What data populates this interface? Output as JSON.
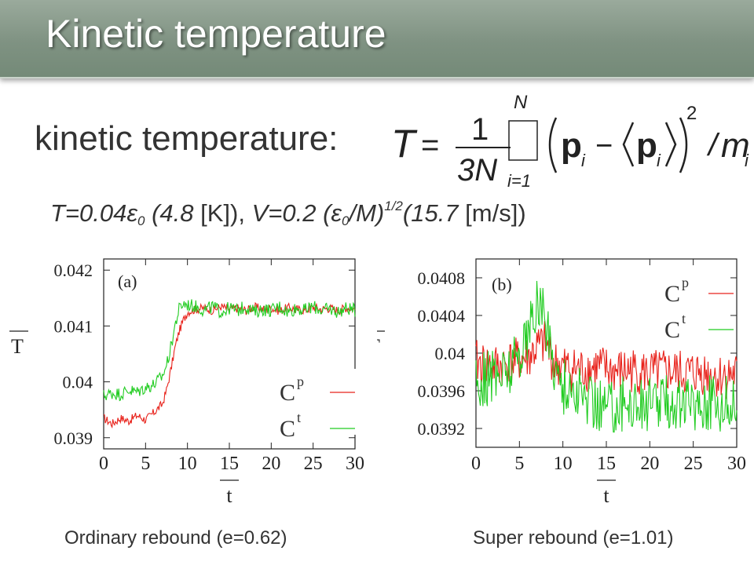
{
  "slide": {
    "title": "Kinetic temperature",
    "kinetic_label": "kinetic temperature:",
    "formula": {
      "lhs": "T",
      "equals": "=",
      "numerator": "1",
      "denominator": "3N",
      "sum_upper": "N",
      "sum_lower": "i=1",
      "p": "p",
      "index": "i",
      "minus": "−",
      "power": "2",
      "divide": "/",
      "mass": "m"
    },
    "params": {
      "t_prefix": "T=0.04ε",
      "t_sub": "0",
      "t_kelvin_value": " (4.8",
      "t_kelvin_unit": " [K]), ",
      "v_prefix": "V=0.2 (ε",
      "v_sub": "0",
      "v_mid": "/M)",
      "v_sup": "1/2",
      "v_speed_value": "(15.7",
      "v_speed_unit": " [m/s])"
    },
    "caption_left": "Ordinary rebound (e=0.62)",
    "caption_right": "Super rebound (e=1.01)"
  },
  "chart_data": [
    {
      "type": "line",
      "panel_label": "(a)",
      "xlabel": "t",
      "ylabel": "T",
      "xlim": [
        0,
        30
      ],
      "ylim": [
        0.0388,
        0.0422
      ],
      "xticks": [
        0,
        5,
        10,
        15,
        20,
        25,
        30
      ],
      "yticks": [
        0.039,
        0.04,
        0.041,
        0.042
      ],
      "ytick_labels": [
        "0.039",
        "0.04",
        "0.041",
        "0.042"
      ],
      "legend": {
        "placement": "lower-right",
        "entries": [
          {
            "label": "C",
            "sup": "p"
          },
          {
            "label": "C",
            "sup": "t"
          }
        ]
      },
      "colors": {
        "p": "#e8231c",
        "t": "#22cc22"
      },
      "series": [
        {
          "name": "Cp",
          "color": "#e8231c",
          "x": [
            0,
            1,
            2,
            3,
            4,
            5,
            6,
            7,
            7.5,
            8,
            8.5,
            9,
            9.5,
            10,
            11,
            12,
            13,
            14,
            15,
            16,
            17,
            18,
            19,
            20,
            21,
            22,
            23,
            24,
            25,
            26,
            27,
            28,
            29,
            30
          ],
          "y": [
            0.03935,
            0.03925,
            0.03935,
            0.0393,
            0.0394,
            0.03932,
            0.03945,
            0.0396,
            0.03985,
            0.0402,
            0.0406,
            0.0409,
            0.0411,
            0.04125,
            0.0413,
            0.04132,
            0.04128,
            0.04135,
            0.0413,
            0.04132,
            0.04128,
            0.04134,
            0.0413,
            0.04132,
            0.04127,
            0.04133,
            0.0413,
            0.04128,
            0.04134,
            0.0413,
            0.04132,
            0.04128,
            0.04133,
            0.0413
          ],
          "noise": 8e-05
        },
        {
          "name": "Ct",
          "color": "#22cc22",
          "x": [
            0,
            1,
            2,
            3,
            4,
            5,
            6,
            7,
            7.5,
            8,
            8.5,
            9,
            9.5,
            10,
            11,
            12,
            13,
            14,
            15,
            16,
            17,
            18,
            19,
            20,
            21,
            22,
            23,
            24,
            25,
            26,
            27,
            28,
            29,
            30
          ],
          "y": [
            0.03975,
            0.0398,
            0.03978,
            0.03985,
            0.03982,
            0.0399,
            0.03995,
            0.0401,
            0.0403,
            0.0406,
            0.041,
            0.0413,
            0.0414,
            0.04138,
            0.04135,
            0.04128,
            0.04135,
            0.04125,
            0.04132,
            0.04128,
            0.04135,
            0.04125,
            0.0413,
            0.04128,
            0.04135,
            0.04125,
            0.04132,
            0.04128,
            0.04135,
            0.04128,
            0.0413,
            0.04125,
            0.04132,
            0.04128
          ],
          "noise": 0.00012
        }
      ]
    },
    {
      "type": "line",
      "panel_label": "(b)",
      "xlabel": "t",
      "ylabel": "T",
      "xlim": [
        0,
        30
      ],
      "ylim": [
        0.039,
        0.041
      ],
      "xticks": [
        0,
        5,
        10,
        15,
        20,
        25,
        30
      ],
      "yticks": [
        0.0392,
        0.0396,
        0.04,
        0.0404,
        0.0408
      ],
      "ytick_labels": [
        "0.0392",
        "0.0396",
        "0.04",
        "0.0404",
        "0.0408"
      ],
      "legend": {
        "placement": "top-right",
        "entries": [
          {
            "label": "C",
            "sup": "p"
          },
          {
            "label": "C",
            "sup": "t"
          }
        ]
      },
      "colors": {
        "p": "#e8231c",
        "t": "#22cc22"
      },
      "series": [
        {
          "name": "Cp",
          "color": "#e8231c",
          "x": [
            0,
            2,
            4,
            6,
            7,
            8,
            9,
            10,
            12,
            14,
            16,
            18,
            20,
            22,
            24,
            26,
            28,
            30
          ],
          "y": [
            0.0399,
            0.03985,
            0.0399,
            0.03995,
            0.04005,
            0.0401,
            0.0399,
            0.03985,
            0.03982,
            0.03985,
            0.0398,
            0.03982,
            0.03978,
            0.0398,
            0.03978,
            0.0398,
            0.03975,
            0.03978
          ],
          "noise": 0.00025
        },
        {
          "name": "Ct",
          "color": "#22cc22",
          "x": [
            0,
            2,
            4,
            6,
            7,
            7.5,
            8,
            9,
            10,
            12,
            14,
            16,
            18,
            20,
            22,
            24,
            26,
            28,
            30
          ],
          "y": [
            0.0397,
            0.03975,
            0.03985,
            0.0402,
            0.0405,
            0.04055,
            0.0403,
            0.0399,
            0.03965,
            0.03955,
            0.03945,
            0.03945,
            0.03948,
            0.03945,
            0.0395,
            0.03945,
            0.03948,
            0.03945,
            0.03948
          ],
          "noise": 0.0003
        }
      ]
    }
  ]
}
